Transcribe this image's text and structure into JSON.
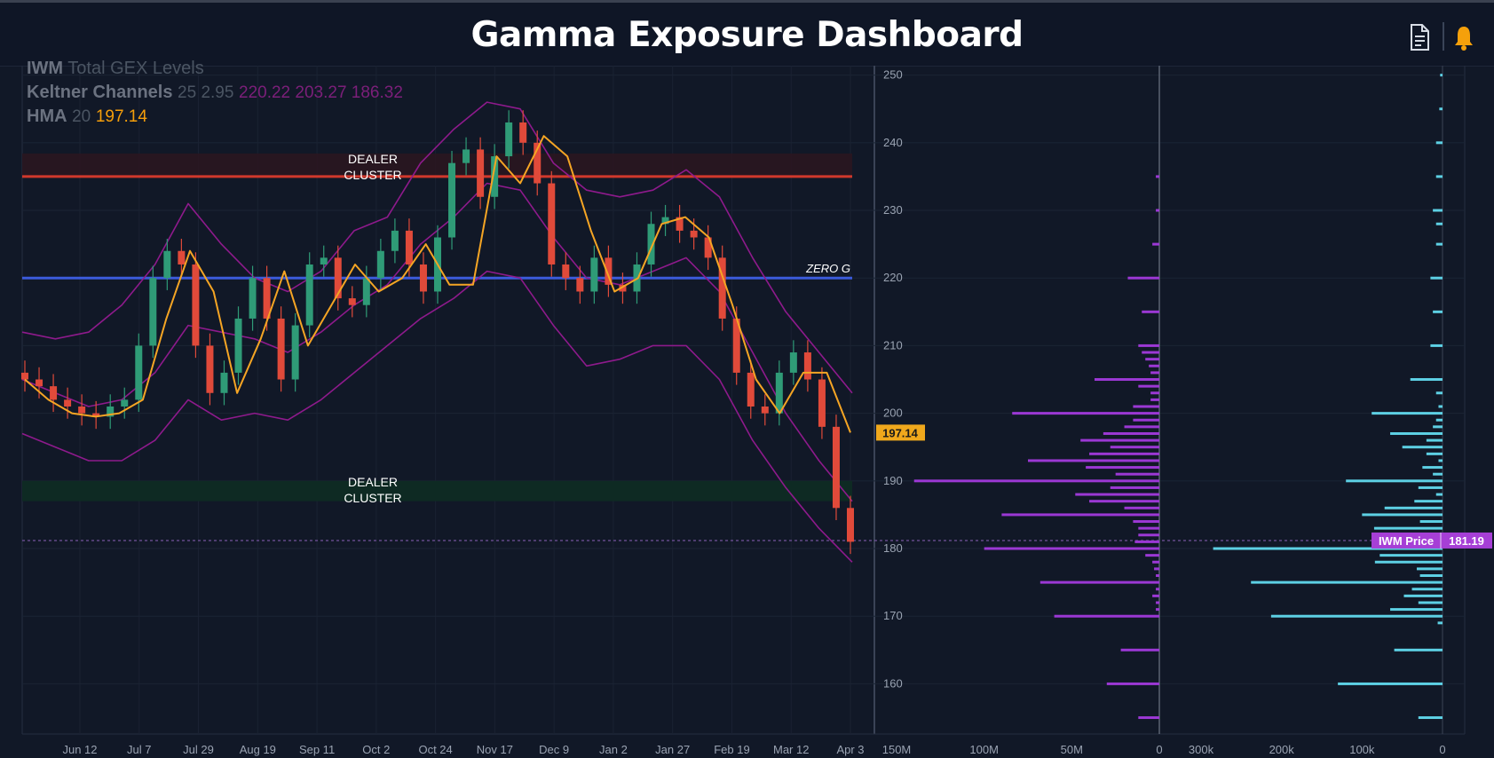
{
  "header": {
    "title": "Gamma Exposure Dashboard",
    "icons": [
      "document-icon",
      "bell-icon"
    ]
  },
  "legend": {
    "symbol": "IWM",
    "title": "Total GEX Levels",
    "keltner_label": "Keltner Channels",
    "keltner_params": "25 2.95",
    "keltner_values": "220.22 203.27 186.32",
    "hma_label": "HMA",
    "hma_param": "20",
    "hma_value": "197.14"
  },
  "annotations": {
    "dealer_cluster_top": [
      "DEALER",
      "CLUSTER"
    ],
    "dealer_cluster_bottom": [
      "DEALER",
      "CLUSTER"
    ],
    "zero_gamma": "ZERO G"
  },
  "badges": {
    "hma_price": "197.14",
    "iwm_price_label": "IWM Price",
    "iwm_price_value": "181.19"
  },
  "colors": {
    "background": "#111827",
    "keltner": "#8e1a8c",
    "hma": "#f5a524",
    "zero_gamma": "#3b5bdb",
    "dealer_top": "#d0382c",
    "dealer_bottom_zone": "#0e2a23",
    "up_candle": "#2f9b77",
    "down_candle": "#e04a3a",
    "gex_bars": "#9b38d4",
    "oi_bars": "#5dd0e4",
    "hma_badge": "#f0a81c",
    "price_badge": "#a63fd6"
  },
  "chart_data": [
    {
      "type": "line",
      "name": "price-chart",
      "x_ticks": [
        "Jun 12",
        "Jul 7",
        "Jul 29",
        "Aug 19",
        "Sep 11",
        "Oct 2",
        "Oct 24",
        "Nov 17",
        "Dec 9",
        "Jan 2",
        "Jan 27",
        "Feb 19",
        "Mar 12",
        "Apr 3"
      ],
      "y_ticks": [
        250,
        240,
        230,
        220,
        210,
        200,
        190,
        180,
        170,
        160
      ],
      "ylim": [
        155,
        251
      ],
      "levels": {
        "dealer_cluster_top": 235,
        "zero_gamma": 220,
        "dealer_cluster_bottom_range": [
          187,
          190
        ],
        "current_price": 181.19
      },
      "close": [
        205,
        204,
        202,
        201,
        200,
        199.5,
        201,
        202,
        210,
        220,
        224,
        222,
        210,
        203,
        206,
        214,
        220,
        214,
        205,
        213,
        222,
        223,
        217,
        216,
        220,
        224,
        227,
        222,
        218,
        226,
        237,
        239,
        232,
        238,
        243,
        240,
        234,
        222,
        220,
        218,
        223,
        219,
        218,
        222,
        228,
        229,
        227,
        226,
        223,
        214,
        206,
        201,
        200,
        206,
        209,
        205,
        198,
        186,
        181
      ],
      "series": [
        {
          "name": "HMA",
          "values": [
            205,
            202,
            200,
            199.5,
            200,
            202,
            214,
            224,
            218,
            203,
            211,
            221,
            210,
            216,
            222,
            218,
            220,
            225,
            219,
            219,
            238,
            234,
            241,
            238,
            227,
            218,
            220,
            228,
            229,
            226,
            216,
            205,
            200,
            206,
            206,
            197.14
          ]
        },
        {
          "name": "Keltner upper",
          "values": [
            212,
            211,
            212,
            216,
            222,
            231,
            225,
            220,
            218,
            221,
            227,
            229,
            237,
            242,
            246,
            245,
            237,
            233,
            232,
            233,
            236,
            232,
            223,
            215,
            209,
            203
          ]
        },
        {
          "name": "Keltner middle",
          "values": [
            205,
            203,
            201,
            202,
            206,
            213,
            212,
            211,
            209,
            212,
            216,
            219,
            225,
            229,
            234,
            233,
            226,
            220,
            219,
            221,
            223,
            218,
            209,
            200,
            193,
            187
          ]
        },
        {
          "name": "Keltner lower",
          "values": [
            197,
            195,
            193,
            193,
            196,
            202,
            199,
            200,
            199,
            202,
            206,
            210,
            214,
            217,
            221,
            220,
            213,
            207,
            208,
            210,
            210,
            205,
            196,
            189,
            183,
            178
          ]
        }
      ]
    },
    {
      "type": "bar",
      "name": "gex-profile",
      "x_ticks": [
        "150M",
        "100M",
        "50M",
        "0"
      ],
      "xlim": [
        0,
        150
      ],
      "strikes": [
        235,
        230,
        225,
        220,
        215,
        210,
        209,
        208,
        207,
        206,
        205,
        204,
        203,
        202,
        201,
        200,
        199,
        198,
        197,
        196,
        195,
        194,
        193,
        192,
        191,
        190,
        189,
        188,
        187,
        186,
        185,
        184,
        183,
        182,
        181,
        180,
        179,
        178,
        177,
        176,
        175,
        174,
        173,
        172,
        171,
        170,
        165,
        160,
        155
      ],
      "values": [
        2,
        2,
        4,
        18,
        10,
        12,
        10,
        8,
        6,
        5,
        37,
        12,
        5,
        5,
        15,
        84,
        15,
        20,
        32,
        45,
        28,
        40,
        75,
        42,
        25,
        140,
        28,
        48,
        40,
        20,
        90,
        15,
        12,
        12,
        14,
        100,
        8,
        4,
        3,
        2,
        68,
        2,
        4,
        2,
        2,
        60,
        22,
        30,
        12
      ]
    },
    {
      "type": "bar",
      "name": "open-interest-profile",
      "x_ticks": [
        "300k",
        "200k",
        "100k",
        "0"
      ],
      "xlim": [
        0,
        300
      ],
      "strikes": [
        250,
        245,
        240,
        235,
        230,
        228,
        225,
        220,
        215,
        210,
        205,
        203,
        201,
        200,
        199,
        198,
        197,
        196,
        195,
        194,
        193,
        192,
        191,
        190,
        189,
        188,
        187,
        186,
        185,
        184,
        183,
        182,
        181,
        180,
        179,
        178,
        177,
        176,
        175,
        174,
        173,
        172,
        171,
        170,
        169,
        165,
        160,
        155
      ],
      "values": [
        3,
        4,
        8,
        8,
        12,
        8,
        8,
        15,
        12,
        15,
        40,
        8,
        5,
        88,
        8,
        12,
        65,
        20,
        50,
        20,
        5,
        25,
        12,
        120,
        30,
        8,
        35,
        72,
        100,
        28,
        85,
        75,
        80,
        285,
        78,
        84,
        32,
        28,
        238,
        38,
        48,
        30,
        65,
        213,
        6,
        60,
        130,
        30
      ]
    }
  ]
}
